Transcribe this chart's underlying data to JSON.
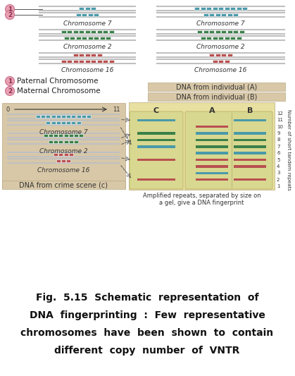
{
  "bg_color": "#ffffff",
  "teal": "#4a9aaa",
  "green": "#3a8048",
  "red": "#b85050",
  "pink_circle": "#e8a0b0",
  "pink_circle_border": "#cc7090",
  "tan_bg": "#d8c8a8",
  "gel_bg": "#e8e0a0",
  "gray_line": "#b8b8b8",
  "chr7_label": "Chromosome 7",
  "chr2_label": "Chromosome 2",
  "chr16_label": "Chromosome 16",
  "paternal_label": "Paternal Chromosome",
  "maternal_label": "Maternal Chromosome",
  "dna_a_label": "DNA from individual (A)",
  "dna_b_label": "DNA from individual (B)",
  "dna_c_label": "DNA from crime scene (c)",
  "amplified_label": "Amplified repeats, separated by size on\na gel, give a DNA fingerprint",
  "gel_cols": [
    "C",
    "A",
    "B"
  ],
  "ytick_label": "Number of short tandem repeats",
  "caption_line1": "Fig.  5.15  Schematic  representation  of",
  "caption_line2": "DNA  fingerprinting  :  Few  representative",
  "caption_line3": "chromosomes  have  been  shown  to  contain",
  "caption_line4": "different  copy  number  of  VNTR"
}
